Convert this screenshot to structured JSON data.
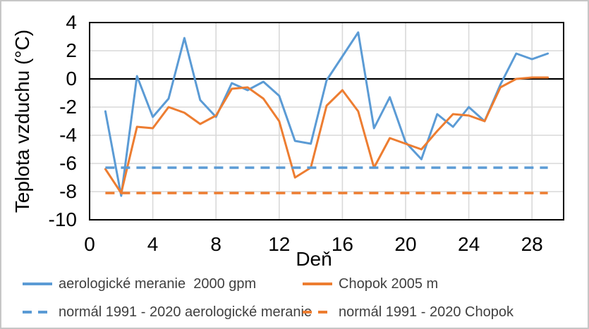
{
  "chart_data": {
    "type": "line",
    "title": "",
    "xlabel": "Deň",
    "ylabel": "Teplota vzduchu (°C)",
    "xlim": [
      0,
      30
    ],
    "ylim": [
      -10,
      4
    ],
    "x_ticks": [
      0,
      4,
      8,
      12,
      16,
      20,
      24,
      28
    ],
    "y_ticks": [
      4,
      2,
      0,
      -2,
      -4,
      -6,
      -8,
      -10
    ],
    "grid": true,
    "legend_position": "bottom",
    "x": [
      1,
      2,
      3,
      4,
      5,
      6,
      7,
      8,
      9,
      10,
      11,
      12,
      13,
      14,
      15,
      16,
      17,
      18,
      19,
      20,
      21,
      22,
      23,
      24,
      25,
      26,
      27,
      28,
      29
    ],
    "series": [
      {
        "name": "aerologické meranie  2000 gpm",
        "color": "#5B9BD5",
        "line_style": "solid",
        "values": [
          -2.3,
          -8.3,
          0.2,
          -2.7,
          -1.4,
          2.9,
          -1.5,
          -2.7,
          -0.3,
          -0.8,
          -0.2,
          -1.2,
          -4.4,
          -4.6,
          -0.1,
          1.6,
          3.3,
          -3.5,
          -1.3,
          -4.5,
          -5.7,
          -2.5,
          -3.4,
          -2.0,
          -3.0,
          -0.4,
          1.8,
          1.4,
          1.8
        ]
      },
      {
        "name": "Chopok 2005 m",
        "color": "#ED7D31",
        "line_style": "solid",
        "values": [
          -6.4,
          -8.1,
          -3.4,
          -3.5,
          -2.0,
          -2.4,
          -3.2,
          -2.6,
          -0.7,
          -0.6,
          -1.4,
          -3.0,
          -7.0,
          -6.3,
          -1.9,
          -0.8,
          -2.3,
          -6.3,
          -4.2,
          -4.6,
          -5.0,
          -3.7,
          -2.5,
          -2.6,
          -3.0,
          -0.6,
          0.0,
          0.1,
          0.1
        ]
      },
      {
        "name": "normál 1991 - 2020 aerologické meranie",
        "color": "#5B9BD5",
        "line_style": "dashed",
        "constant_value": -6.3
      },
      {
        "name": "normál 1991 - 2020 Chopok",
        "color": "#ED7D31",
        "line_style": "dashed",
        "constant_value": -8.1
      }
    ],
    "colors": {
      "gridline": "#D9D9D9",
      "axis_line": "#000000",
      "zero_line": "#000000",
      "tick_label": "#000000",
      "legend_text": "#404040",
      "background": "#FFFFFF"
    }
  }
}
